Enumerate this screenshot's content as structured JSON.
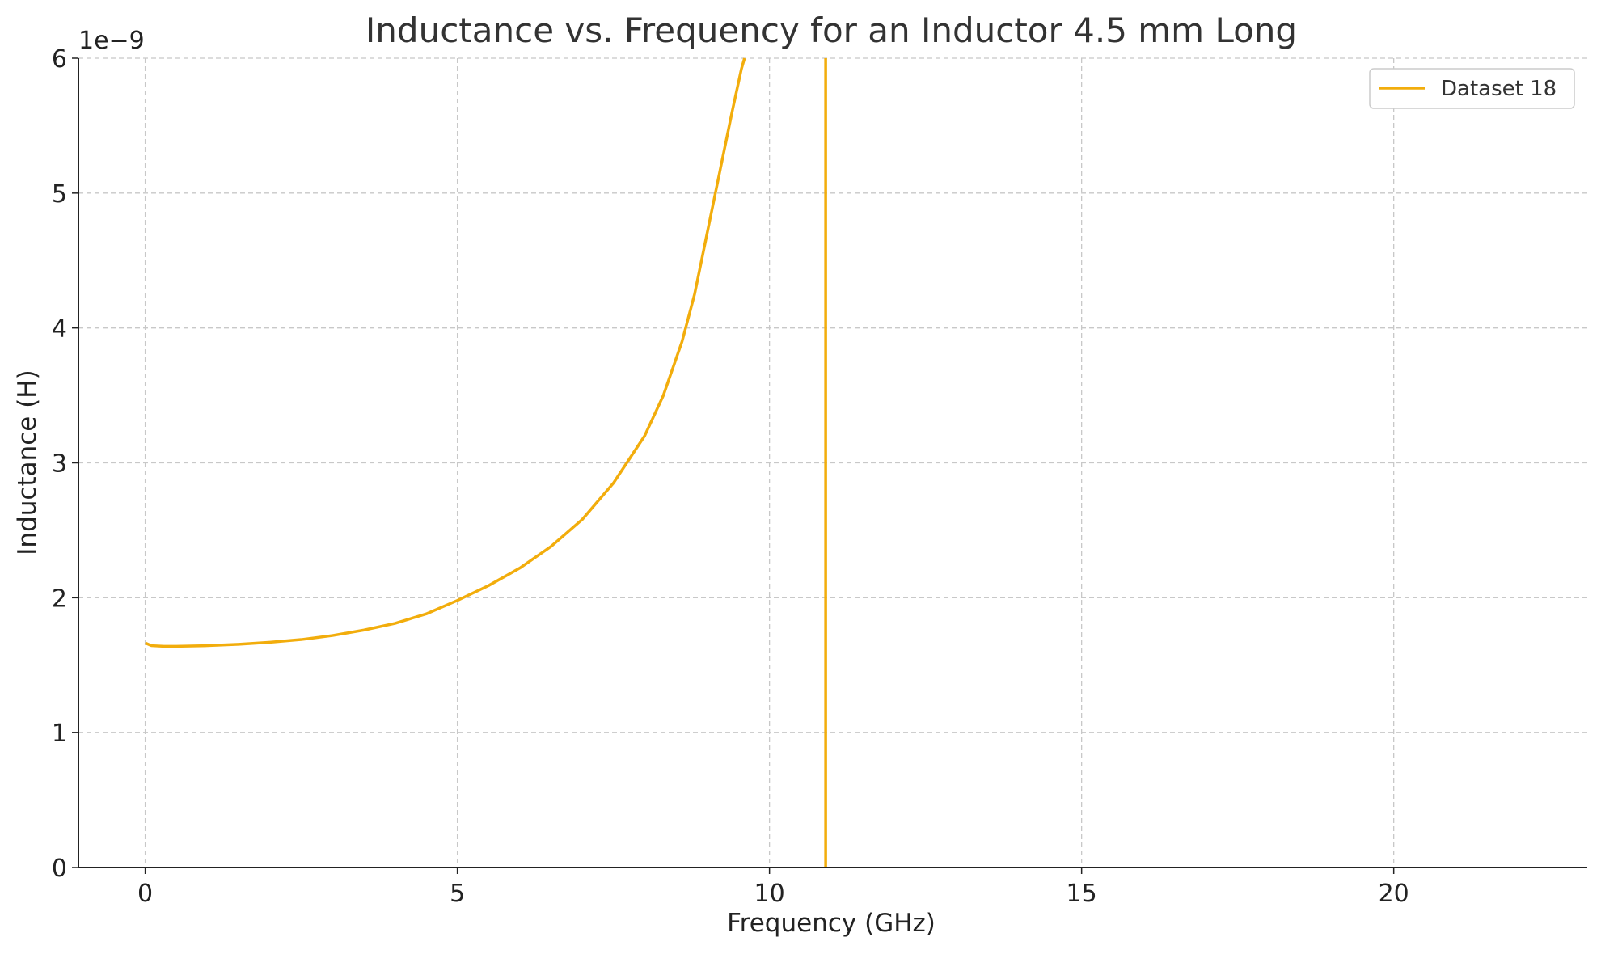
{
  "chart_data": {
    "type": "line",
    "title": "Inductance vs. Frequency for an Inductor 4.5 mm Long",
    "xlabel": "Frequency (GHz)",
    "ylabel": "Inductance (H)",
    "y_scale_label": "1e−9",
    "xlim": [
      -1.07,
      23.1
    ],
    "ylim": [
      0,
      6e-09
    ],
    "xticks": [
      0,
      5,
      10,
      15,
      20
    ],
    "yticks": [
      0,
      1e-09,
      2e-09,
      3e-09,
      4e-09,
      5e-09,
      6e-09
    ],
    "xtick_labels": [
      "0",
      "5",
      "10",
      "15",
      "20"
    ],
    "ytick_labels": [
      "0",
      "1",
      "2",
      "3",
      "4",
      "5",
      "6"
    ],
    "grid": true,
    "legend_position": "top-right",
    "series": [
      {
        "name": "Dataset 18",
        "color": "#f2ad0c",
        "x": [
          0.0,
          0.1,
          0.3,
          0.5,
          1.0,
          1.5,
          2.0,
          2.5,
          3.0,
          3.5,
          4.0,
          4.5,
          5.0,
          5.5,
          6.0,
          6.5,
          7.0,
          7.5,
          8.0,
          8.3,
          8.6,
          8.8,
          9.0,
          9.2,
          9.4,
          9.55,
          9.6
        ],
        "y": [
          1.665e-09,
          1.645e-09,
          1.64e-09,
          1.64e-09,
          1.645e-09,
          1.655e-09,
          1.67e-09,
          1.69e-09,
          1.72e-09,
          1.76e-09,
          1.81e-09,
          1.88e-09,
          1.98e-09,
          2.09e-09,
          2.22e-09,
          2.38e-09,
          2.58e-09,
          2.85e-09,
          3.2e-09,
          3.5e-09,
          3.9e-09,
          4.25e-09,
          4.7e-09,
          5.15e-09,
          5.6e-09,
          5.92e-09,
          6e-09
        ]
      },
      {
        "name": "",
        "color": "#f2ad0c",
        "x": [
          10.9,
          10.9
        ],
        "y": [
          0,
          6e-09
        ]
      }
    ]
  }
}
